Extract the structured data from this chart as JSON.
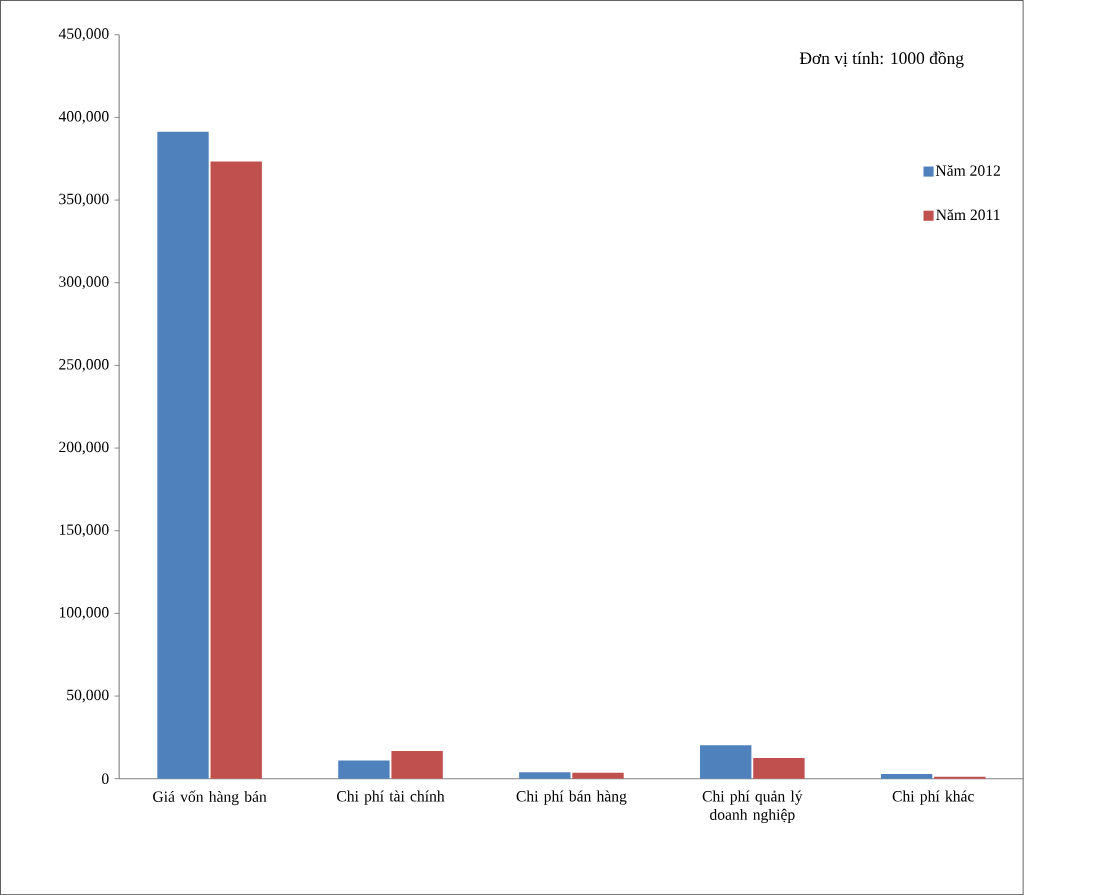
{
  "chart_data": {
    "type": "bar",
    "categories": [
      "Giá vốn hàng bán",
      "Chi phí tài chính",
      "Chi phí bán hàng",
      "Chi phí quản lý doanh nghiệp",
      "Chi phí khác"
    ],
    "series": [
      {
        "name": "Năm 2012",
        "color": "#4f81bd",
        "values": [
          391300,
          11100,
          3900,
          20300,
          2800
        ]
      },
      {
        "name": "Năm 2011",
        "color": "#c0504d",
        "values": [
          373300,
          16800,
          3600,
          12600,
          1200
        ]
      }
    ],
    "ylim": [
      0,
      450000
    ],
    "yticks": [
      {
        "value": 0,
        "label": "0"
      },
      {
        "value": 50000,
        "label": "50,000"
      },
      {
        "value": 100000,
        "label": "100,000"
      },
      {
        "value": 150000,
        "label": "150,000"
      },
      {
        "value": 200000,
        "label": "200,000"
      },
      {
        "value": 250000,
        "label": "250,000"
      },
      {
        "value": 300000,
        "label": "300,000"
      },
      {
        "value": 350000,
        "label": "350,000"
      },
      {
        "value": 400000,
        "label": "400,000"
      },
      {
        "value": 450000,
        "label": "450,000"
      }
    ],
    "annotations": [
      "Đơn vị tính: 1000 đồng"
    ],
    "legend": "right",
    "grid": false
  }
}
